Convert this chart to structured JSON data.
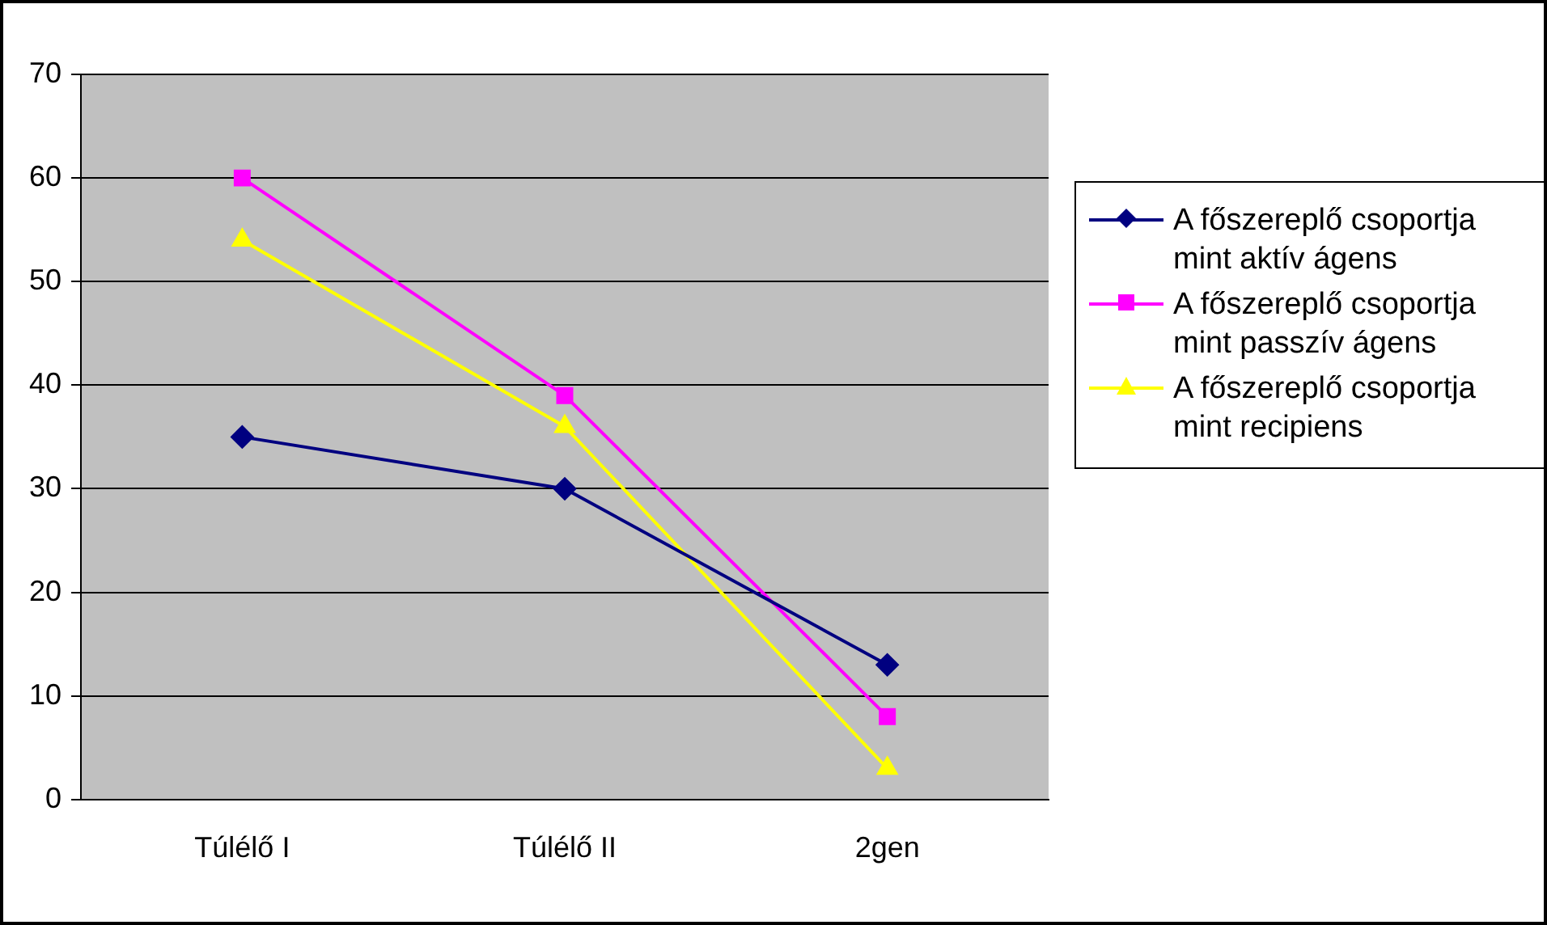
{
  "chart_data": {
    "type": "line",
    "categories": [
      "Túlélő I",
      "Túlélő II",
      "2gen"
    ],
    "series": [
      {
        "name": "A főszereplő csoportja mint aktív ágens",
        "color": "#000080",
        "marker": "diamond",
        "values": [
          35,
          30,
          13
        ]
      },
      {
        "name": "A főszereplő csoportja mint passzív ágens",
        "color": "#ff00ff",
        "marker": "square",
        "values": [
          60,
          39,
          8
        ]
      },
      {
        "name": "A főszereplő csoportja mint recipiens",
        "color": "#ffff00",
        "marker": "triangle",
        "values": [
          54,
          36,
          3
        ]
      }
    ],
    "ylim": [
      0,
      70
    ],
    "yticks": [
      0,
      10,
      20,
      30,
      40,
      50,
      60,
      70
    ],
    "grid": "y",
    "legend": "right"
  }
}
